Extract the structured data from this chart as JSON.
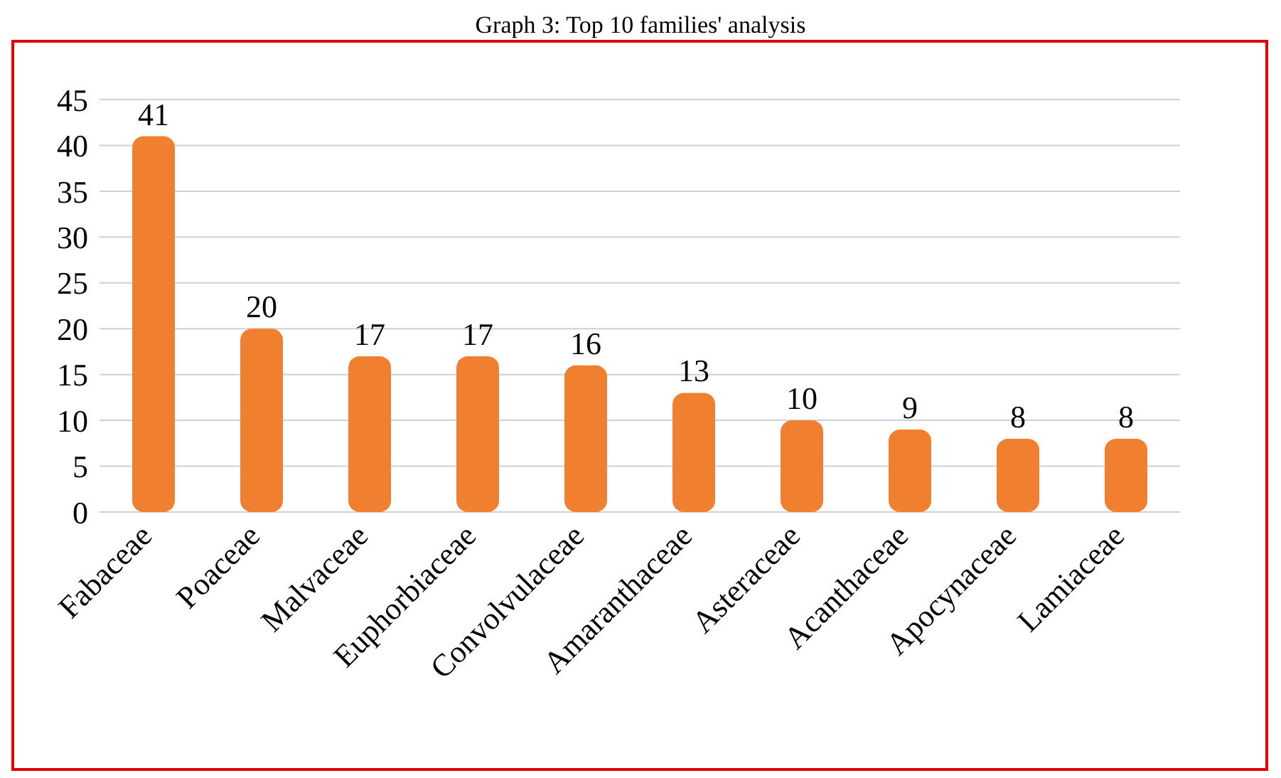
{
  "chart_data": {
    "type": "bar",
    "title": "Graph 3: Top 10 families' analysis",
    "categories": [
      "Fabaceae",
      "Poaceae",
      "Malvaceae",
      "Euphorbiaceae",
      "Convolvulaceae",
      "Amaranthaceae",
      "Asteraceae",
      "Acanthaceae",
      "Apocynaceae",
      "Lamiaceae"
    ],
    "values": [
      41,
      20,
      17,
      17,
      16,
      13,
      10,
      9,
      8,
      8
    ],
    "color": "#f0802f",
    "ylim": [
      0,
      45
    ],
    "yticks": [
      0,
      5,
      10,
      15,
      20,
      25,
      30,
      35,
      40,
      45
    ],
    "grid": "y",
    "data_labels": true
  }
}
